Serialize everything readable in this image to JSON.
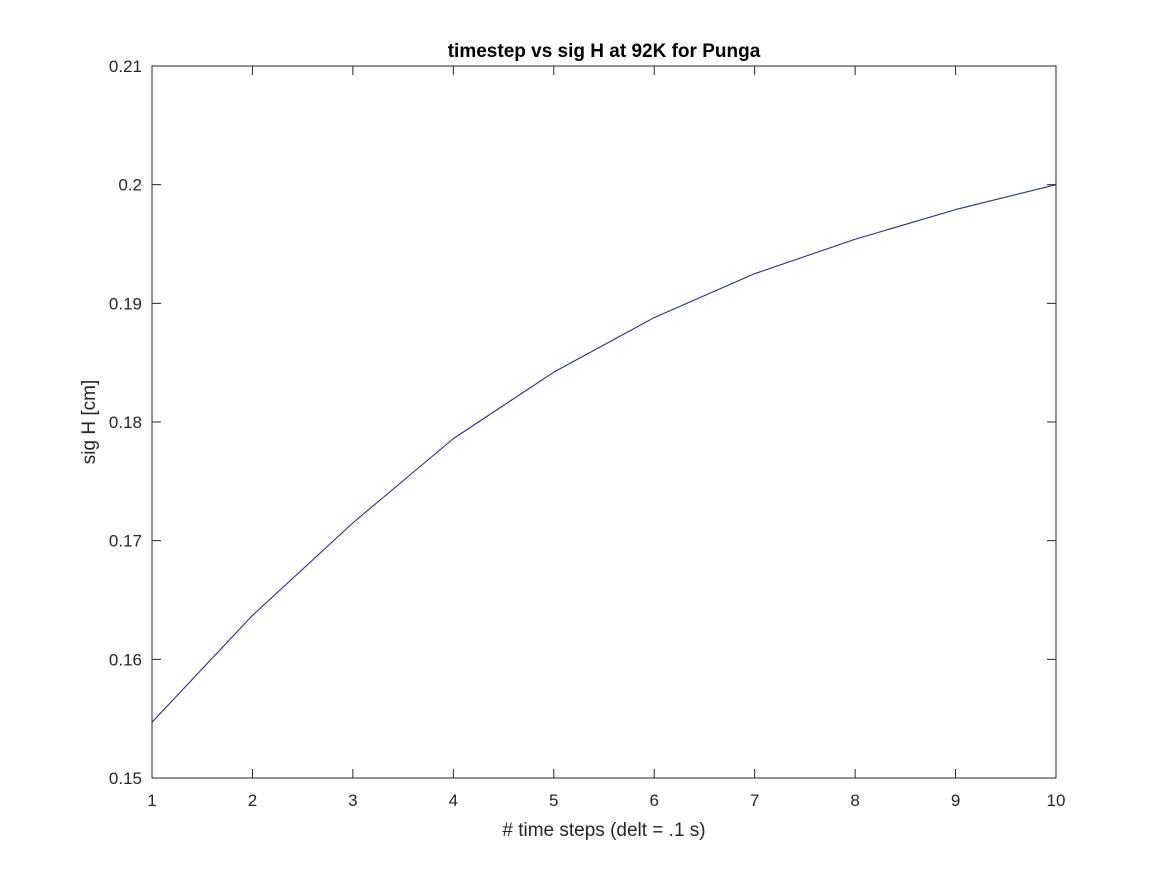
{
  "chart_data": {
    "type": "line",
    "title": "timestep vs sig H at 92K for Punga",
    "xlabel": "# time steps (delt = .1 s)",
    "ylabel": "sig H [cm]",
    "xlim": [
      1,
      10
    ],
    "ylim": [
      0.15,
      0.21
    ],
    "xticks": [
      "1",
      "2",
      "3",
      "4",
      "5",
      "6",
      "7",
      "8",
      "9",
      "10"
    ],
    "yticks": [
      "0.15",
      "0.16",
      "0.17",
      "0.18",
      "0.19",
      "0.2",
      "0.21"
    ],
    "grid": false,
    "box": true,
    "series": [
      {
        "color": "#2b2b8f",
        "x": [
          1,
          2,
          3,
          4,
          5,
          6,
          7,
          8,
          9,
          10
        ],
        "y": [
          0.1547,
          0.1637,
          0.1715,
          0.1786,
          0.1842,
          0.1888,
          0.1925,
          0.1954,
          0.1979,
          0.2
        ]
      }
    ]
  },
  "colors": {
    "axis": "#262626",
    "background": "#ffffff"
  }
}
